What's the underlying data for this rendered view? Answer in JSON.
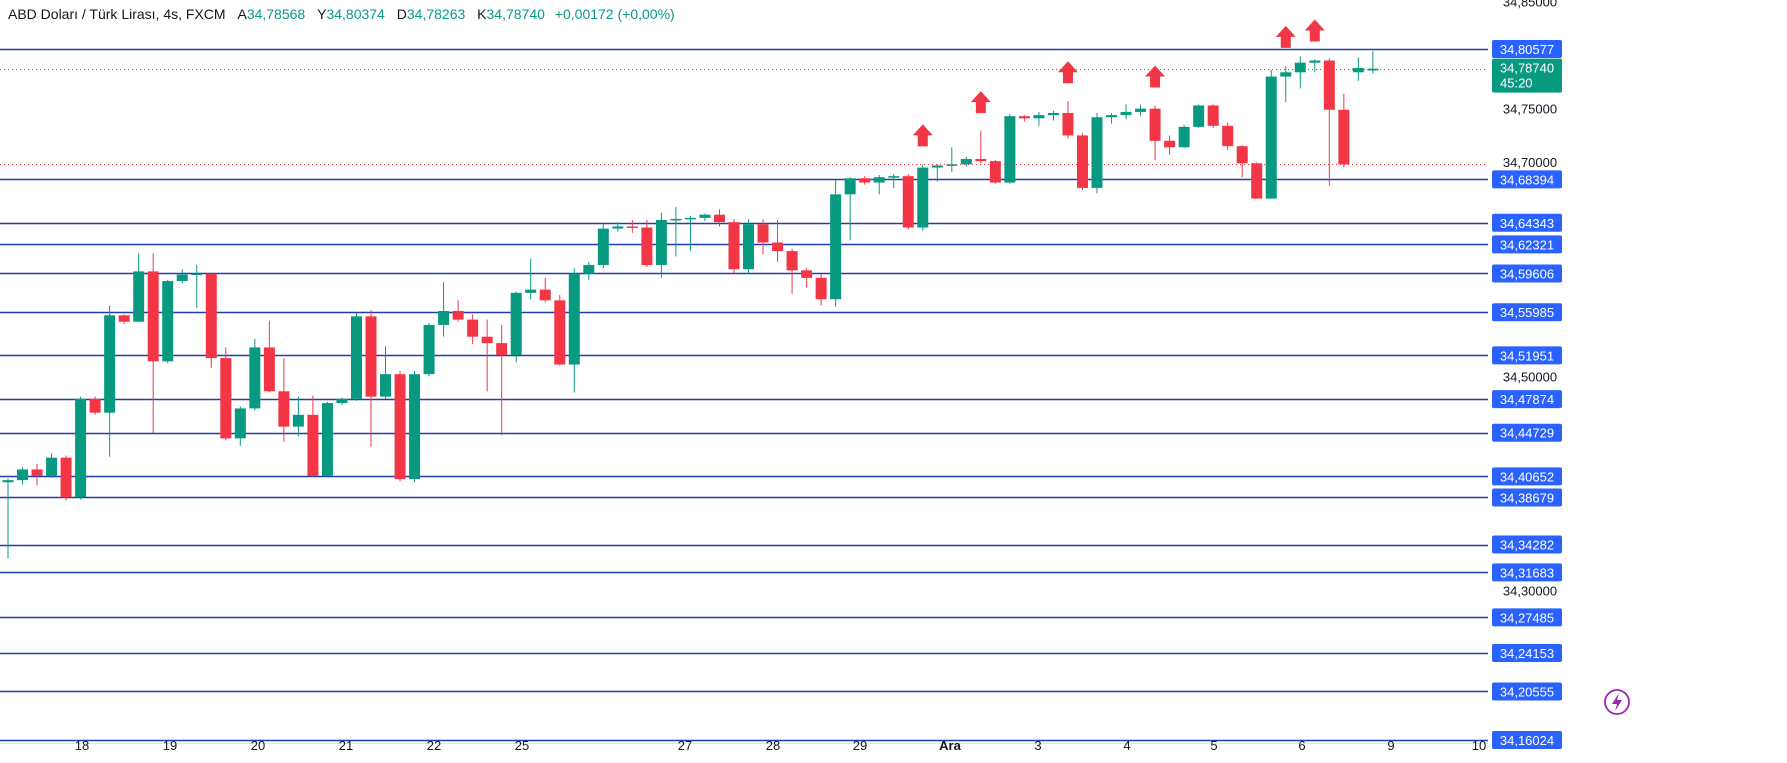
{
  "header": {
    "symbol": "ABD Doları / Türk Lirası, 4s, FXCM",
    "open_label": "A",
    "open": "34,78568",
    "high_label": "Y",
    "high": "34,80374",
    "low_label": "D",
    "low": "34,78263",
    "close_label": "K",
    "close": "34,78740",
    "change": "+0,00172 (+0,00%)"
  },
  "price_badge": {
    "value": "34,78740",
    "countdown": "45:20"
  },
  "colors": {
    "up": "#089981",
    "down": "#F23645",
    "level_line": "#1E3FAE",
    "level_badge": "#2962FF",
    "arrow": "#F23645",
    "price_badge": "#089981"
  },
  "chart_data": {
    "type": "candlestick",
    "price_axis_ticks": [
      "34,85000",
      "34,75000",
      "34,70000",
      "34,50000",
      "34,30000"
    ],
    "time_axis_labels": [
      "18",
      "19",
      "20",
      "21",
      "22",
      "25",
      "27",
      "28",
      "29",
      "Ara",
      "3",
      "4",
      "5",
      "6",
      "9",
      "10"
    ],
    "horizontal_levels": [
      "34,80577",
      "34,68394",
      "34,64343",
      "34,62321",
      "34,59606",
      "34,55985",
      "34,51951",
      "34,47874",
      "34,44729",
      "34,40652",
      "34,38679",
      "34,34282",
      "34,31683",
      "34,27485",
      "34,24153",
      "34,20555",
      "34,16024"
    ],
    "up_arrow_candle_indices": [
      63,
      67,
      73,
      79,
      88,
      90
    ],
    "candles": [
      [
        34.401,
        34.4045,
        34.33,
        34.403
      ],
      [
        34.403,
        34.415,
        34.399,
        34.413
      ],
      [
        34.413,
        34.418,
        34.398,
        34.407
      ],
      [
        34.407,
        34.428,
        34.405,
        34.424
      ],
      [
        34.424,
        34.426,
        34.384,
        34.387
      ],
      [
        34.387,
        34.481,
        34.385,
        34.479
      ],
      [
        34.479,
        34.481,
        34.464,
        34.466
      ],
      [
        34.466,
        34.566,
        34.425,
        34.557
      ],
      [
        34.557,
        34.558,
        34.549,
        34.551
      ],
      [
        34.551,
        34.615,
        34.551,
        34.598
      ],
      [
        34.598,
        34.615,
        34.447,
        34.514
      ],
      [
        34.514,
        34.59,
        34.512,
        34.589
      ],
      [
        34.589,
        34.6,
        34.587,
        34.595
      ],
      [
        34.595,
        34.604,
        34.564,
        34.596
      ],
      [
        34.596,
        34.596,
        34.508,
        34.517
      ],
      [
        34.517,
        34.527,
        34.44,
        34.442
      ],
      [
        34.442,
        34.472,
        34.435,
        34.47
      ],
      [
        34.47,
        34.535,
        34.468,
        34.527
      ],
      [
        34.527,
        34.552,
        34.485,
        34.486
      ],
      [
        34.486,
        34.517,
        34.439,
        34.453
      ],
      [
        34.453,
        34.481,
        34.444,
        34.464
      ],
      [
        34.464,
        34.482,
        34.406,
        34.407
      ],
      [
        34.407,
        34.476,
        34.407,
        34.475
      ],
      [
        34.475,
        34.48,
        34.473,
        34.479
      ],
      [
        34.479,
        34.559,
        34.477,
        34.556
      ],
      [
        34.556,
        34.562,
        34.434,
        34.481
      ],
      [
        34.481,
        34.528,
        34.479,
        34.502
      ],
      [
        34.502,
        34.505,
        34.402,
        34.404
      ],
      [
        34.404,
        34.505,
        34.401,
        34.502
      ],
      [
        34.502,
        34.55,
        34.5,
        34.548
      ],
      [
        34.548,
        34.588,
        34.537,
        34.561
      ],
      [
        34.561,
        34.571,
        34.551,
        34.553
      ],
      [
        34.553,
        34.558,
        34.53,
        34.537
      ],
      [
        34.537,
        34.553,
        34.486,
        34.531
      ],
      [
        34.531,
        34.548,
        34.445,
        34.52
      ],
      [
        34.52,
        34.579,
        34.513,
        34.578
      ],
      [
        34.578,
        34.61,
        34.572,
        34.581
      ],
      [
        34.581,
        34.592,
        34.569,
        34.571
      ],
      [
        34.571,
        34.576,
        34.51,
        34.511
      ],
      [
        34.511,
        34.601,
        34.485,
        34.596
      ],
      [
        34.596,
        34.607,
        34.59,
        34.604
      ],
      [
        34.604,
        34.643,
        34.601,
        34.638
      ],
      [
        34.638,
        34.644,
        34.635,
        34.64
      ],
      [
        34.64,
        34.646,
        34.634,
        34.639
      ],
      [
        34.639,
        34.646,
        34.602,
        34.604
      ],
      [
        34.604,
        34.653,
        34.592,
        34.646
      ],
      [
        34.646,
        34.658,
        34.612,
        34.647
      ],
      [
        34.647,
        34.65,
        34.617,
        34.648
      ],
      [
        34.648,
        34.652,
        34.645,
        34.651
      ],
      [
        34.651,
        34.656,
        34.64,
        34.644
      ],
      [
        34.644,
        34.647,
        34.596,
        34.6
      ],
      [
        34.6,
        34.647,
        34.596,
        34.642
      ],
      [
        34.642,
        34.647,
        34.614,
        34.625
      ],
      [
        34.625,
        34.646,
        34.607,
        34.617
      ],
      [
        34.617,
        34.619,
        34.577,
        34.599
      ],
      [
        34.599,
        34.601,
        34.583,
        34.592
      ],
      [
        34.592,
        34.596,
        34.566,
        34.572
      ],
      [
        34.572,
        34.683,
        34.565,
        34.67
      ],
      [
        34.67,
        34.686,
        34.627,
        34.685
      ],
      [
        34.685,
        34.687,
        34.679,
        34.681
      ],
      [
        34.681,
        34.688,
        34.67,
        34.686
      ],
      [
        34.686,
        34.689,
        34.676,
        34.687
      ],
      [
        34.687,
        34.689,
        34.637,
        34.639
      ],
      [
        34.639,
        34.698,
        34.636,
        34.695
      ],
      [
        34.695,
        34.698,
        34.682,
        34.697
      ],
      [
        34.697,
        34.714,
        34.691,
        34.698
      ],
      [
        34.698,
        34.705,
        34.696,
        34.703
      ],
      [
        34.703,
        34.729,
        34.699,
        34.701
      ],
      [
        34.701,
        34.702,
        34.68,
        34.681
      ],
      [
        34.681,
        34.745,
        34.68,
        34.743
      ],
      [
        34.743,
        34.744,
        34.738,
        34.741
      ],
      [
        34.741,
        34.747,
        34.734,
        34.744
      ],
      [
        34.744,
        34.748,
        34.739,
        34.746
      ],
      [
        34.746,
        34.757,
        34.722,
        34.725
      ],
      [
        34.725,
        34.727,
        34.674,
        34.676
      ],
      [
        34.676,
        34.746,
        34.671,
        34.742
      ],
      [
        34.742,
        34.746,
        34.736,
        34.744
      ],
      [
        34.744,
        34.754,
        34.74,
        34.747
      ],
      [
        34.747,
        34.754,
        34.743,
        34.75
      ],
      [
        34.75,
        34.753,
        34.702,
        34.72
      ],
      [
        34.72,
        34.725,
        34.707,
        34.714
      ],
      [
        34.714,
        34.735,
        34.713,
        34.733
      ],
      [
        34.733,
        34.754,
        34.732,
        34.753
      ],
      [
        34.753,
        34.754,
        34.732,
        34.734
      ],
      [
        34.734,
        34.737,
        34.711,
        34.715
      ],
      [
        34.715,
        34.716,
        34.686,
        34.699
      ],
      [
        34.699,
        34.7,
        34.666,
        34.666
      ],
      [
        34.666,
        34.786,
        34.666,
        34.78
      ],
      [
        34.78,
        34.79,
        34.756,
        34.784
      ],
      [
        34.784,
        34.799,
        34.769,
        34.793
      ],
      [
        34.793,
        34.796,
        34.784,
        34.795
      ],
      [
        34.795,
        34.797,
        34.678,
        34.749
      ],
      [
        34.749,
        34.764,
        34.695,
        34.698
      ],
      [
        34.784,
        34.798,
        34.776,
        34.788
      ],
      [
        34.7857,
        34.8037,
        34.7826,
        34.7874
      ]
    ]
  }
}
